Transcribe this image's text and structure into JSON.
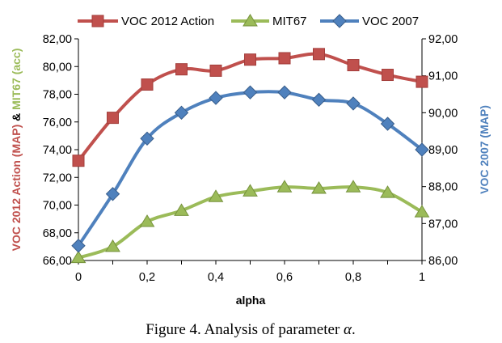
{
  "chart_data": {
    "type": "line",
    "x": [
      0,
      0.1,
      0.2,
      0.3,
      0.4,
      0.5,
      0.6,
      0.7,
      0.8,
      0.9,
      1
    ],
    "xlabel": "alpha",
    "x_ticks": [
      "0",
      "0,2",
      "0,4",
      "0,6",
      "0,8",
      "1"
    ],
    "x_tick_values": [
      0,
      0.2,
      0.4,
      0.6,
      0.8,
      1
    ],
    "xlim": [
      0,
      1
    ],
    "ylim_left": [
      66,
      82
    ],
    "ylim_right": [
      86,
      92
    ],
    "y_left_ticks": [
      "66,00",
      "68,00",
      "70,00",
      "72,00",
      "74,00",
      "76,00",
      "78,00",
      "80,00",
      "82,00"
    ],
    "y_left_tick_values": [
      66,
      68,
      70,
      72,
      74,
      76,
      78,
      80,
      82
    ],
    "y_right_ticks": [
      "86,00",
      "87,00",
      "88,00",
      "89,00",
      "90,00",
      "91,00",
      "92,00"
    ],
    "y_right_tick_values": [
      86,
      87,
      88,
      89,
      90,
      91,
      92
    ],
    "ylabel_left": {
      "part1": "VOC 2012 Action (MAP)",
      "sep": " & ",
      "part2": "MIT67 (acc)"
    },
    "ylabel_right": "VOC 2007 (MAP)",
    "grid": false,
    "legend_position": "top",
    "series": [
      {
        "name": "VOC 2012 Action",
        "axis": "left",
        "marker": "square",
        "color": "#c0504d",
        "edge": "#a33e3b",
        "values": [
          73.2,
          76.3,
          78.7,
          79.8,
          79.7,
          80.5,
          80.6,
          80.9,
          80.1,
          79.4,
          78.9
        ]
      },
      {
        "name": "MIT67",
        "axis": "left",
        "marker": "triangle",
        "color": "#9bbb59",
        "edge": "#76923c",
        "values": [
          66.2,
          67.0,
          68.8,
          69.6,
          70.6,
          71.0,
          71.3,
          71.2,
          71.3,
          70.9,
          69.5
        ]
      },
      {
        "name": "VOC 2007",
        "axis": "right",
        "marker": "diamond",
        "color": "#4f81bd",
        "edge": "#385d8a",
        "values": [
          86.4,
          87.8,
          89.3,
          90.0,
          90.4,
          90.55,
          90.55,
          90.35,
          90.25,
          89.7,
          89.0
        ]
      }
    ]
  },
  "caption": {
    "prefix": "Figure 4. Analysis of parameter ",
    "symbol": "α",
    "suffix": "."
  }
}
